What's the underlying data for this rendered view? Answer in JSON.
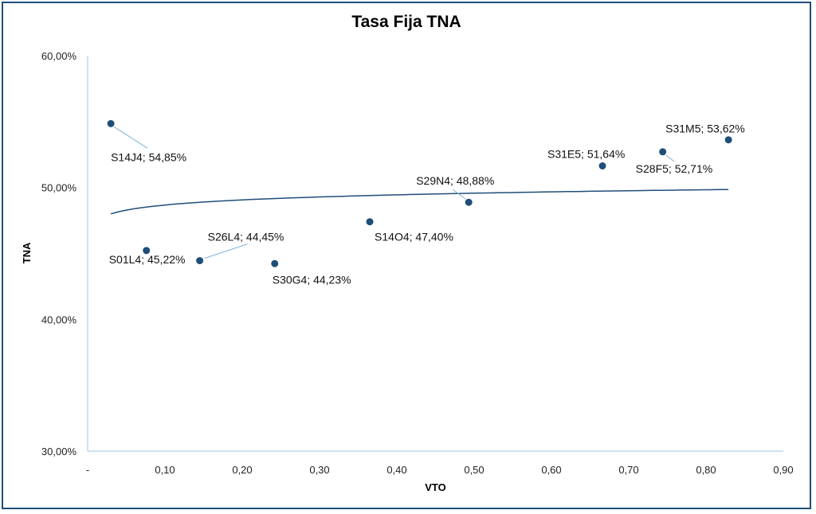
{
  "chart_data": {
    "type": "scatter",
    "title": "Tasa Fija TNA",
    "xlabel": "VTO",
    "ylabel": "TNA",
    "xlim": [
      0,
      0.9
    ],
    "ylim": [
      30,
      60
    ],
    "x_ticks": [
      "-",
      "0,10",
      "0,20",
      "0,30",
      "0,40",
      "0,50",
      "0,60",
      "0,70",
      "0,80",
      "0,90"
    ],
    "y_ticks": [
      "30,00%",
      "40,00%",
      "50,00%",
      "60,00%"
    ],
    "grid": false,
    "legend": "none",
    "colors": {
      "point": "#1f4e79",
      "trendline": "#1f4e79",
      "leader": "#7fb2d6",
      "frame": "#1f4e79",
      "axis": "#9dc3e6"
    },
    "points": [
      {
        "name": "S14J4",
        "x": 0.03,
        "y": 54.85,
        "label": "S14J4; 54,85%"
      },
      {
        "name": "S01L4",
        "x": 0.076,
        "y": 45.22,
        "label": "S01L4; 45,22%"
      },
      {
        "name": "S26L4",
        "x": 0.145,
        "y": 44.45,
        "label": "S26L4; 44,45%"
      },
      {
        "name": "S30G4",
        "x": 0.242,
        "y": 44.23,
        "label": "S30G4; 44,23%"
      },
      {
        "name": "S14O4",
        "x": 0.365,
        "y": 47.4,
        "label": "S14O4; 47,40%"
      },
      {
        "name": "S29N4",
        "x": 0.493,
        "y": 48.88,
        "label": "S29N4; 48,88%"
      },
      {
        "name": "S31E5",
        "x": 0.666,
        "y": 51.64,
        "label": "S31E5; 51,64%"
      },
      {
        "name": "S28F5",
        "x": 0.744,
        "y": 52.71,
        "label": "S28F5; 52,71%"
      },
      {
        "name": "S31M5",
        "x": 0.829,
        "y": 53.62,
        "label": "S31M5; 53,62%"
      }
    ],
    "trendline": {
      "type": "logarithmic",
      "x": [
        0.03,
        0.829
      ],
      "y": [
        48.0,
        49.85
      ]
    }
  }
}
